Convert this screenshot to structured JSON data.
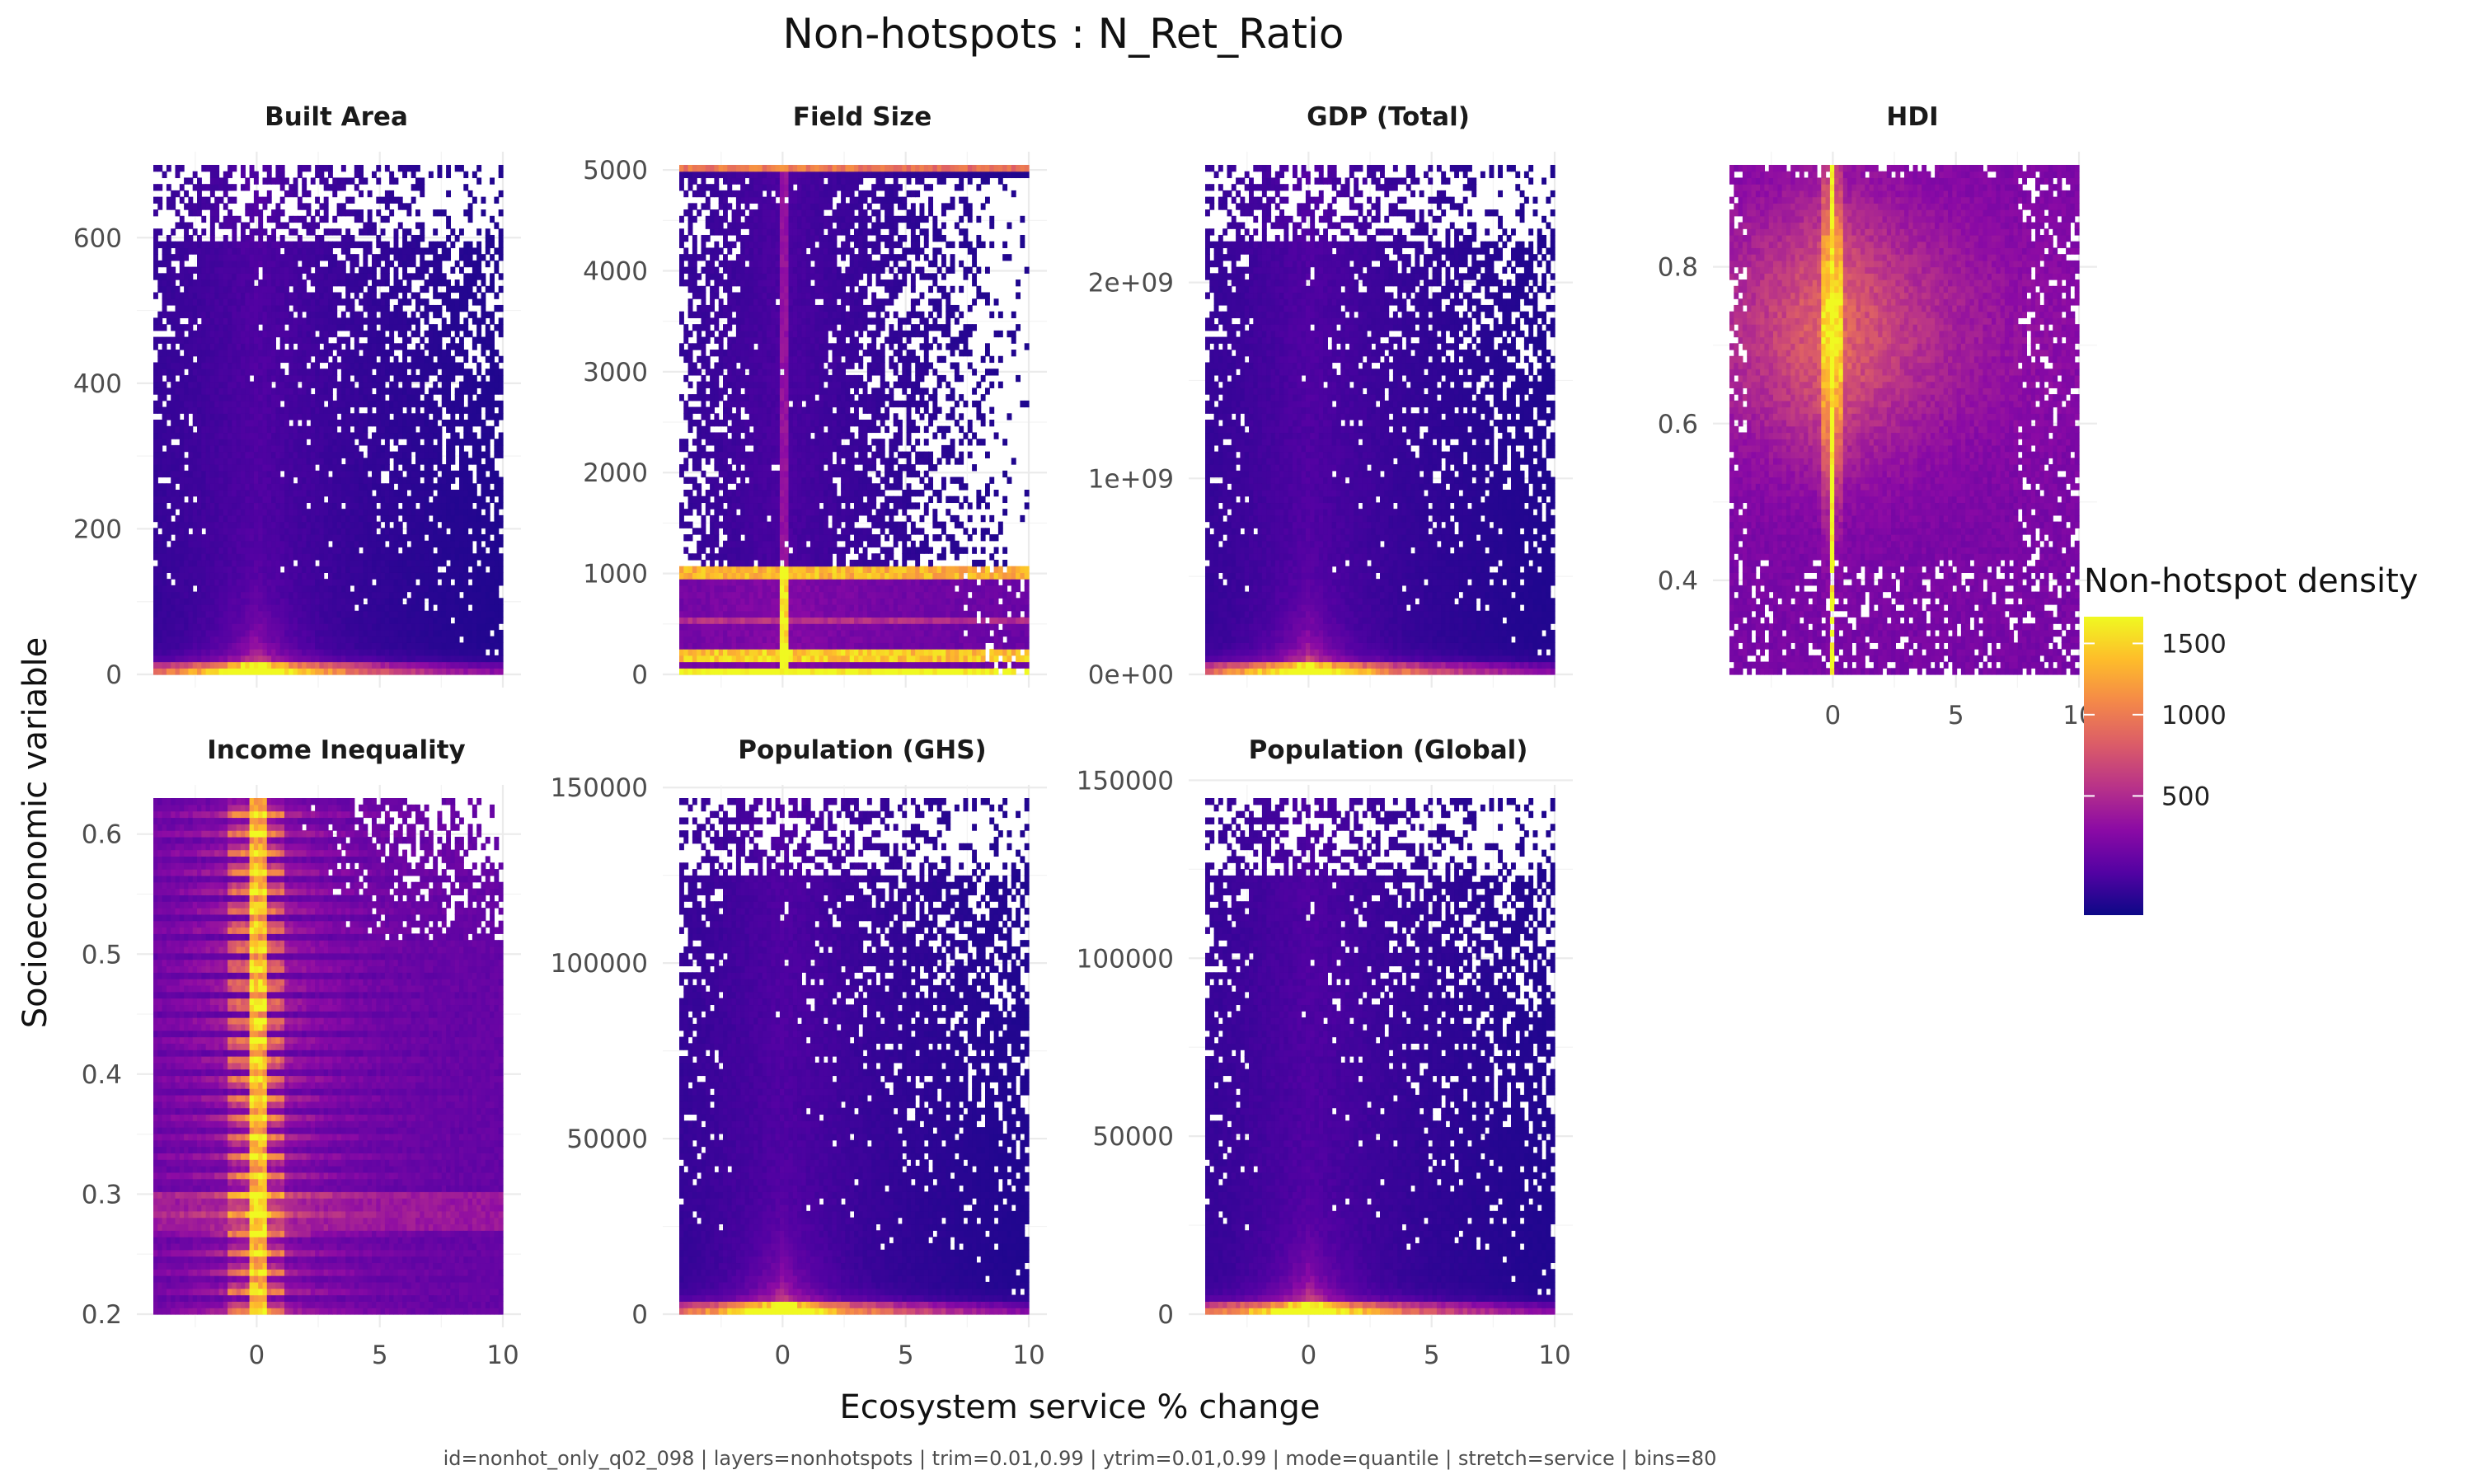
{
  "title": "Non-hotspots : N_Ret_Ratio",
  "xlabel": "Ecosystem service % change",
  "ylabel": "Socioeconomic variable",
  "caption": "id=nonhot_only_q02_098 | layers=nonhotspots | trim=0.01,0.99 | ytrim=0.01,0.99 | mode=quantile | stretch=service | bins=80",
  "legend": {
    "title": "Non-hotspot density",
    "ticks": [
      "1500",
      "1000",
      "500"
    ],
    "colors": [
      "#0d0887",
      "#5302a3",
      "#8b0aa5",
      "#b83289",
      "#db5c68",
      "#f48849",
      "#febd2a",
      "#f0f921"
    ]
  },
  "chart_data": {
    "type": "heatmap",
    "bins": 80,
    "x_range": [
      -4.2,
      10
    ],
    "x_ticks": [
      "0",
      "5",
      "10"
    ],
    "x_tick_values": [
      0,
      5,
      10
    ],
    "density_range": [
      0,
      1700
    ],
    "panels": [
      {
        "name": "Built Area",
        "ylim": [
          0,
          700
        ],
        "yticks": [
          "0",
          "200",
          "400",
          "600"
        ],
        "ytick_values": [
          0,
          200,
          400,
          600
        ],
        "pattern": "pyramid",
        "show_xticks": false
      },
      {
        "name": "Field Size",
        "ylim": [
          0,
          5050
        ],
        "yticks": [
          "0",
          "1000",
          "2000",
          "3000",
          "4000",
          "5000"
        ],
        "ytick_values": [
          0,
          1000,
          2000,
          3000,
          4000,
          5000
        ],
        "pattern": "field",
        "show_xticks": false
      },
      {
        "name": "GDP (Total)",
        "ylim": [
          0,
          2600000000
        ],
        "yticks": [
          "0e+00",
          "1e+09",
          "2e+09"
        ],
        "ytick_values": [
          0,
          1000000000,
          2000000000
        ],
        "pattern": "pyramid",
        "show_xticks": false
      },
      {
        "name": "HDI",
        "ylim": [
          0.28,
          0.93
        ],
        "yticks": [
          "0.4",
          "0.6",
          "0.8"
        ],
        "ytick_values": [
          0.4,
          0.6,
          0.8
        ],
        "pattern": "hdi",
        "show_xticks": true
      },
      {
        "name": "Income Inequality",
        "ylim": [
          0.2,
          0.63
        ],
        "yticks": [
          "0.2",
          "0.3",
          "0.4",
          "0.5",
          "0.6"
        ],
        "ytick_values": [
          0.2,
          0.3,
          0.4,
          0.5,
          0.6
        ],
        "pattern": "inequality",
        "show_xticks": true
      },
      {
        "name": "Population (GHS)",
        "ylim": [
          0,
          147000
        ],
        "yticks": [
          "0",
          "50000",
          "100000",
          "150000"
        ],
        "ytick_values": [
          0,
          50000,
          100000,
          150000
        ],
        "pattern": "pyramid",
        "show_xticks": true
      },
      {
        "name": "Population (Global)",
        "ylim": [
          0,
          145000
        ],
        "yticks": [
          "0",
          "50000",
          "100000",
          "150000"
        ],
        "ytick_values": [
          0,
          50000,
          100000,
          150000
        ],
        "pattern": "pyramid",
        "show_xticks": true
      }
    ]
  }
}
